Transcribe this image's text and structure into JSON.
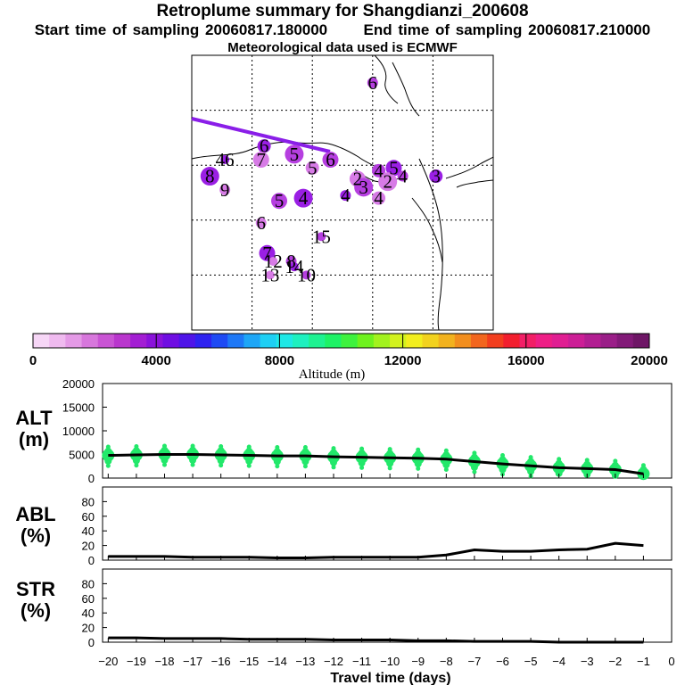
{
  "header": {
    "title": "Retroplume summary for Shangdianzi_200608",
    "start_label": "Start time of sampling",
    "start_value": "20060817.180000",
    "end_label": "End time of sampling",
    "end_value": "20060817.210000",
    "meteo": "Meteorological data used is ECMWF"
  },
  "colors": {
    "track": "#8a1ee8",
    "cluster_points": "#22e86a",
    "line": "#000000"
  },
  "chart_data": [
    {
      "type": "scatter",
      "title": "Retroplume map",
      "description_units": "cluster labels (days back) on map",
      "grid_lon_ticks": 5,
      "grid_lat_ticks": 5,
      "clusters": [
        {
          "label": "6",
          "lon": 0.6,
          "lat": 0.9
        },
        {
          "label": "6",
          "lon": 0.24,
          "lat": 0.67
        },
        {
          "label": "7",
          "lon": 0.23,
          "lat": 0.62
        },
        {
          "label": "5",
          "lon": 0.34,
          "lat": 0.64
        },
        {
          "label": "46",
          "lon": 0.11,
          "lat": 0.62
        },
        {
          "label": "5",
          "lon": 0.4,
          "lat": 0.59
        },
        {
          "label": "6",
          "lon": 0.46,
          "lat": 0.62
        },
        {
          "label": "8",
          "lon": 0.06,
          "lat": 0.56
        },
        {
          "label": "9",
          "lon": 0.11,
          "lat": 0.51
        },
        {
          "label": "4",
          "lon": 0.62,
          "lat": 0.58
        },
        {
          "label": "5",
          "lon": 0.67,
          "lat": 0.59
        },
        {
          "label": "2",
          "lon": 0.65,
          "lat": 0.54
        },
        {
          "label": "4",
          "lon": 0.7,
          "lat": 0.56
        },
        {
          "label": "3",
          "lon": 0.81,
          "lat": 0.56
        },
        {
          "label": "2",
          "lon": 0.55,
          "lat": 0.55
        },
        {
          "label": "3",
          "lon": 0.57,
          "lat": 0.52
        },
        {
          "label": "4",
          "lon": 0.51,
          "lat": 0.49
        },
        {
          "label": "4",
          "lon": 0.62,
          "lat": 0.48
        },
        {
          "label": "5",
          "lon": 0.29,
          "lat": 0.47
        },
        {
          "label": "4",
          "lon": 0.37,
          "lat": 0.48
        },
        {
          "label": "6",
          "lon": 0.23,
          "lat": 0.39
        },
        {
          "label": "15",
          "lon": 0.43,
          "lat": 0.34
        },
        {
          "label": "7",
          "lon": 0.25,
          "lat": 0.28
        },
        {
          "label": "12",
          "lon": 0.27,
          "lat": 0.25
        },
        {
          "label": "8",
          "lon": 0.33,
          "lat": 0.25
        },
        {
          "label": "14",
          "lon": 0.34,
          "lat": 0.23
        },
        {
          "label": "13",
          "lon": 0.26,
          "lat": 0.2
        },
        {
          "label": "10",
          "lon": 0.38,
          "lat": 0.2
        }
      ]
    },
    {
      "type": "table",
      "title": "Altitude (m)",
      "colorbar_ticks": [
        "0",
        "4000",
        "8000",
        "12000",
        "16000",
        "20000"
      ],
      "colorbar_min": 0,
      "colorbar_max": 20000,
      "colors": [
        "#f6d6f6",
        "#efbaef",
        "#e49ae6",
        "#d777dc",
        "#c954d4",
        "#b936cd",
        "#a31ed3",
        "#8a12da",
        "#6f0ee2",
        "#4f14e8",
        "#2e22f0",
        "#1e4af4",
        "#1e78f6",
        "#1ea6f6",
        "#1ecff4",
        "#1ee8e6",
        "#1ef0bf",
        "#1ef291",
        "#1ef266",
        "#3ef23e",
        "#6ef21e",
        "#a2f21e",
        "#d2f21e",
        "#f2ee1e",
        "#f2d21e",
        "#f2b21e",
        "#f28e1e",
        "#f2661e",
        "#f23e1e",
        "#f21e2e",
        "#f21e66",
        "#ee1e86",
        "#e01e92",
        "#cc1e96",
        "#b21e92",
        "#9a1e88",
        "#821a78",
        "#6e1666"
      ]
    },
    {
      "type": "scatter",
      "ylabel": "ALT (m)",
      "xlabel": "Travel time (days)",
      "x": [
        -20,
        -19,
        -18,
        -17,
        -16,
        -15,
        -14,
        -13,
        -12,
        -11,
        -10,
        -9,
        -8,
        -7,
        -6,
        -5,
        -4,
        -3,
        -2,
        -1
      ],
      "ylim": [
        0,
        20000
      ],
      "yticks": [
        "0",
        "5000",
        "10000",
        "15000",
        "20000"
      ],
      "mean_altitude": [
        4800,
        4900,
        5000,
        5000,
        4900,
        4800,
        4700,
        4700,
        4500,
        4400,
        4300,
        4200,
        4000,
        3500,
        3000,
        2600,
        2200,
        2000,
        1800,
        900
      ]
    },
    {
      "type": "line",
      "ylabel": "ABL (%)",
      "x": [
        -20,
        -19,
        -18,
        -17,
        -16,
        -15,
        -14,
        -13,
        -12,
        -11,
        -10,
        -9,
        -8,
        -7,
        -6,
        -5,
        -4,
        -3,
        -2,
        -1
      ],
      "ylim": [
        0,
        100
      ],
      "yticks": [
        "0",
        "20",
        "40",
        "60",
        "80"
      ],
      "values": [
        5,
        5,
        5,
        4,
        4,
        4,
        3,
        3,
        4,
        4,
        4,
        4,
        7,
        14,
        12,
        12,
        14,
        15,
        23,
        20
      ]
    },
    {
      "type": "line",
      "ylabel": "STR (%)",
      "x": [
        -20,
        -19,
        -18,
        -17,
        -16,
        -15,
        -14,
        -13,
        -12,
        -11,
        -10,
        -9,
        -8,
        -7,
        -6,
        -5,
        -4,
        -3,
        -2,
        -1
      ],
      "ylim": [
        0,
        100
      ],
      "yticks": [
        "0",
        "20",
        "40",
        "60",
        "80"
      ],
      "values": [
        6,
        6,
        5,
        5,
        5,
        4,
        4,
        4,
        3,
        3,
        3,
        2,
        2,
        1,
        1,
        1,
        0,
        0,
        0,
        0
      ]
    }
  ],
  "panel_labels": {
    "alt_name": "ALT",
    "alt_unit": "(m)",
    "abl_name": "ABL",
    "abl_unit": "(%)",
    "str_name": "STR",
    "str_unit": "(%)"
  },
  "xaxis": {
    "title": "Travel time (days)",
    "ticks": [
      "−20",
      "−19",
      "−18",
      "−17",
      "−16",
      "−15",
      "−14",
      "−13",
      "−12",
      "−11",
      "−10",
      "−9",
      "−8",
      "−7",
      "−6",
      "−5",
      "−4",
      "−3",
      "−2",
      "−1",
      "0"
    ]
  },
  "colorbar_label": "Altitude (m)"
}
